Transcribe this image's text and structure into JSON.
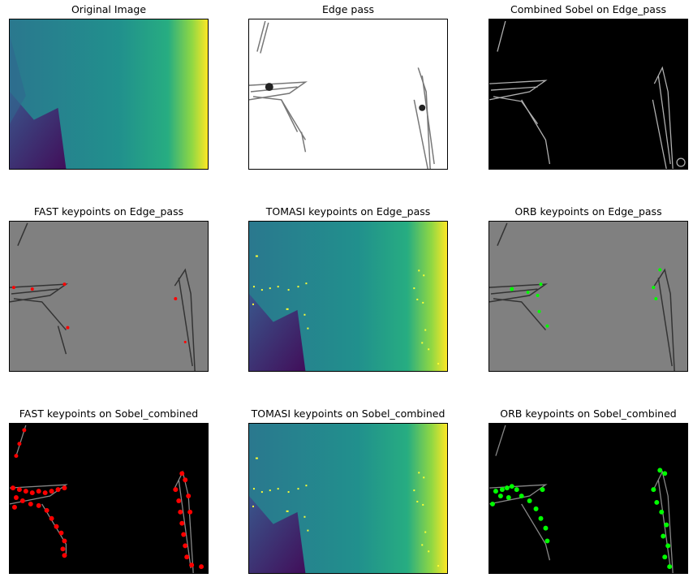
{
  "panels": [
    {
      "id": "p1",
      "title": "Original Image",
      "style": "viridis",
      "keypoints": "none"
    },
    {
      "id": "p2",
      "title": "Edge pass",
      "style": "edge",
      "keypoints": "none"
    },
    {
      "id": "p3",
      "title": "Combined Sobel on Edge_pass",
      "style": "sobel",
      "keypoints": "none"
    },
    {
      "id": "p4",
      "title": "FAST keypoints on Edge_pass",
      "style": "gray",
      "keypoints": "red"
    },
    {
      "id": "p5",
      "title": "TOMASI keypoints on Edge_pass",
      "style": "viridis",
      "keypoints": "yellow"
    },
    {
      "id": "p6",
      "title": "ORB keypoints on Edge_pass",
      "style": "gray",
      "keypoints": "green"
    },
    {
      "id": "p7",
      "title": "FAST keypoints on Sobel_combined",
      "style": "sobel",
      "keypoints": "red"
    },
    {
      "id": "p8",
      "title": "TOMASI keypoints on Sobel_combined",
      "style": "viridis",
      "keypoints": "yellow"
    },
    {
      "id": "p9",
      "title": "ORB keypoints on Sobel_combined",
      "style": "sobel",
      "keypoints": "green"
    }
  ],
  "colors": {
    "viridis_purple": "#440154",
    "viridis_teal": "#21908d",
    "viridis_yellow": "#fde725",
    "gray_background": "#808080",
    "fast_keypoint": "#ff0000",
    "tomasi_keypoint": "#ffff00",
    "orb_keypoint": "#00ff00"
  }
}
